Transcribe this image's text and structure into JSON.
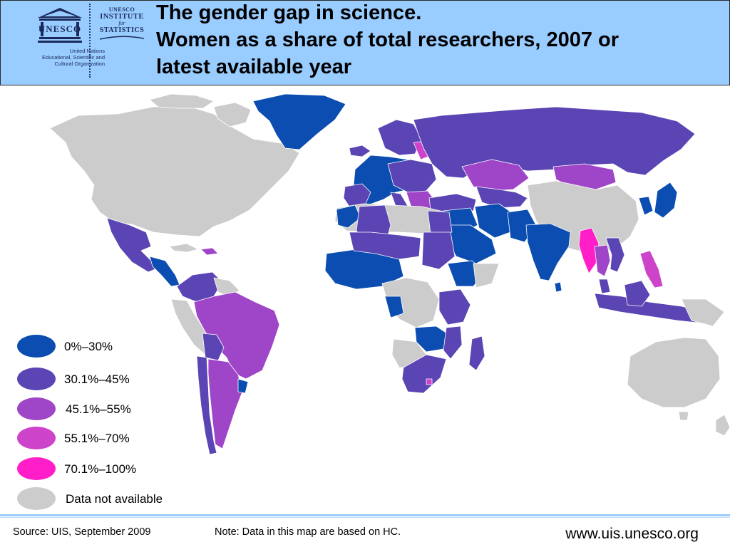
{
  "header": {
    "unesco_wordmark": "UNESCO",
    "unesco_caption": [
      "United Nations",
      "Educational, Scientific and",
      "Cultural Organization"
    ],
    "uis_lines": [
      "UNESCO",
      "INSTITUTE",
      "for",
      "STATISTICS"
    ],
    "title_lines": [
      "The gender gap in science.",
      "Women as a share of total researchers, 2007 or",
      "latest available year"
    ]
  },
  "legend": {
    "items": [
      {
        "label": "0%–30%",
        "color": "#0b4db0"
      },
      {
        "label": "30.1%–45%",
        "color": "#5b44b3"
      },
      {
        "label": "45.1%–55%",
        "color": "#9f45c7"
      },
      {
        "label": "55.1%–70%",
        "color": "#cd43c9"
      },
      {
        "label": "70.1%–100%",
        "color": "#ff1ec8"
      },
      {
        "label": "Data not available",
        "color": "#cccccc"
      }
    ]
  },
  "footer": {
    "source": "Source: UIS, September 2009",
    "note": "Note: Data in this map are based on HC.",
    "website": "www.uis.unesco.org"
  }
}
